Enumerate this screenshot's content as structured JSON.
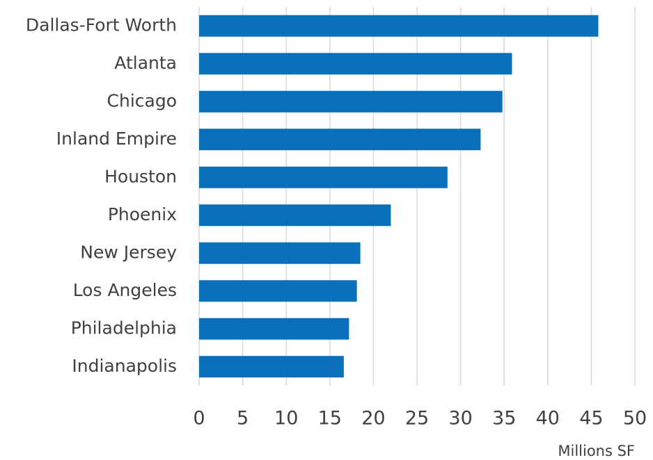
{
  "chart_data": {
    "type": "bar",
    "orientation": "horizontal",
    "x_label": "Millions SF",
    "categories": [
      "Dallas-Fort Worth",
      "Atlanta",
      "Chicago",
      "Inland Empire",
      "Houston",
      "Phoenix",
      "New Jersey",
      "Los Angeles",
      "Philadelphia",
      "Indianapolis"
    ],
    "values": [
      45.8,
      35.9,
      34.8,
      32.3,
      28.5,
      22.0,
      18.5,
      18.1,
      17.2,
      16.6
    ],
    "color": "#0b6fba",
    "xlim": [
      0,
      50
    ],
    "xticks": [
      0,
      5,
      10,
      15,
      20,
      25,
      30,
      35,
      40,
      45,
      50
    ],
    "grid": true
  }
}
